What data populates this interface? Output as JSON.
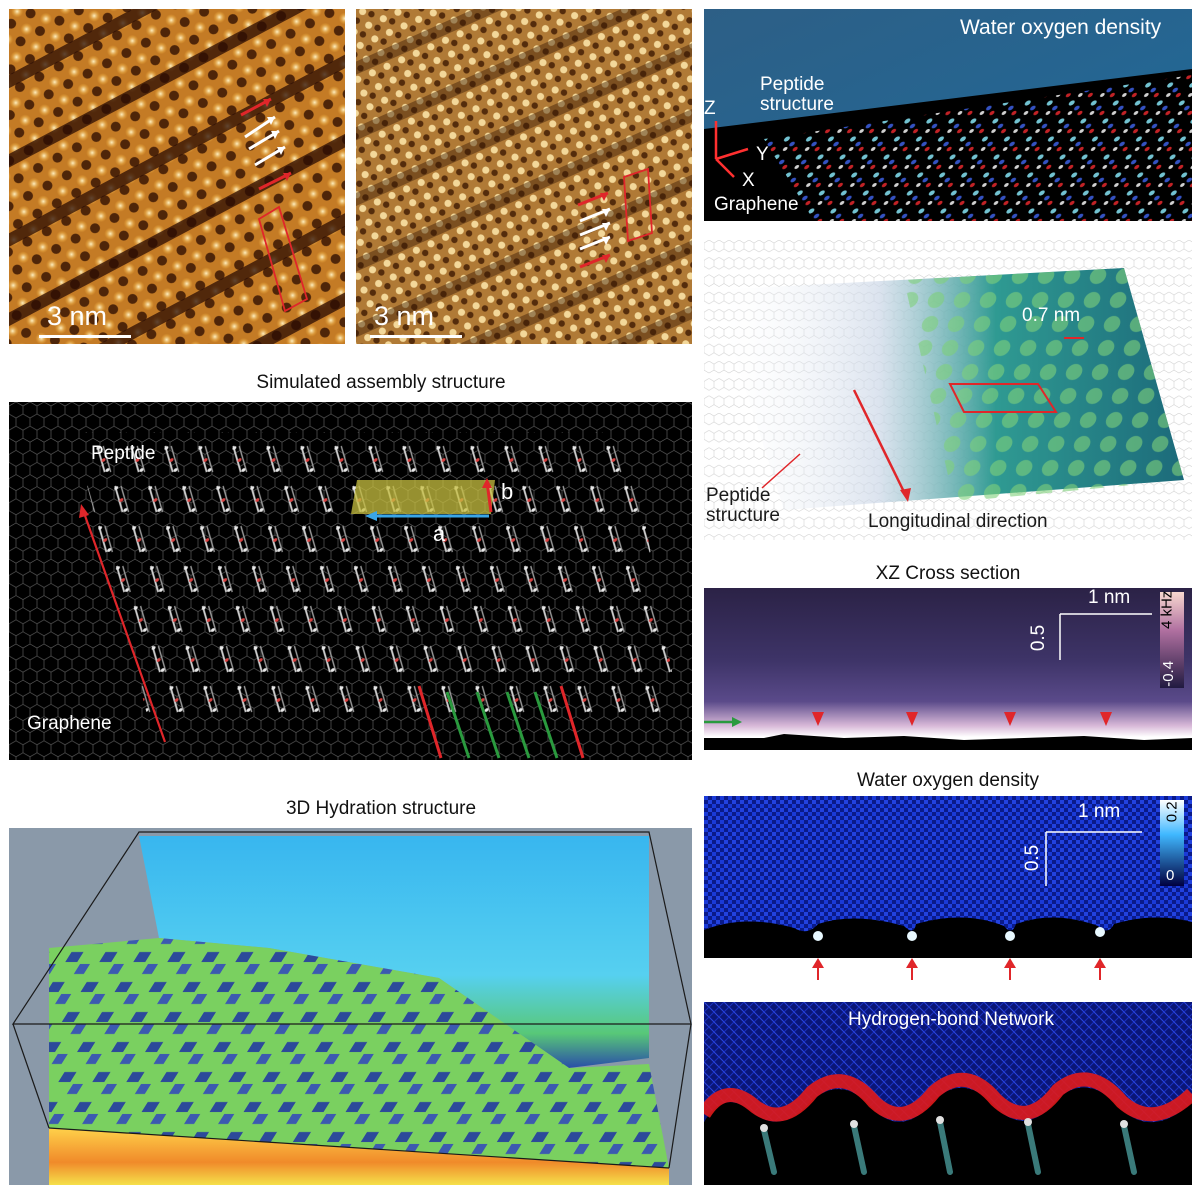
{
  "colors": {
    "stm_light": "#f0b24a",
    "stm_dark": "#3a1604",
    "afm_mid": "#b07a36",
    "sim_bg": "#000000",
    "arrow_red": "#e0262a",
    "arrow_green": "#2a9a3e",
    "arrow_blue": "#3aa6e6",
    "unit_cell": "#c8c040",
    "density_blue": "#1a3ad8",
    "hb_red": "#e01a1a"
  },
  "panels": {
    "stm": {
      "scale_label": "3 nm"
    },
    "afm": {
      "scale_label": "3 nm"
    },
    "water_top": {
      "title": "Water oxygen density",
      "peptide_label": "Peptide\nstructure",
      "graphene_label": "Graphene",
      "axis_z": "Z",
      "axis_y": "Y",
      "axis_x": "X"
    },
    "sim": {
      "title": "Simulated assembly structure",
      "peptide_label": "Peptide",
      "graphene_label": "Graphene",
      "vec_a": "a",
      "vec_b": "b"
    },
    "overlay": {
      "scale_label": "0.7 nm",
      "peptide_label": "Peptide\nstructure",
      "direction_label": "Longitudinal direction"
    },
    "xz": {
      "title": "XZ Cross section",
      "scale_h": "1 nm",
      "scale_v": "0.5",
      "cbar_max": "4 kHz",
      "cbar_min": "-0.4"
    },
    "wod": {
      "title": "Water oxygen density",
      "scale_h": "1 nm",
      "scale_v": "0.5",
      "cbar_max": "0.2",
      "cbar_min": "0"
    },
    "hydration": {
      "title": "3D Hydration structure"
    },
    "hbond": {
      "title": "Hydrogen-bond Network"
    }
  }
}
